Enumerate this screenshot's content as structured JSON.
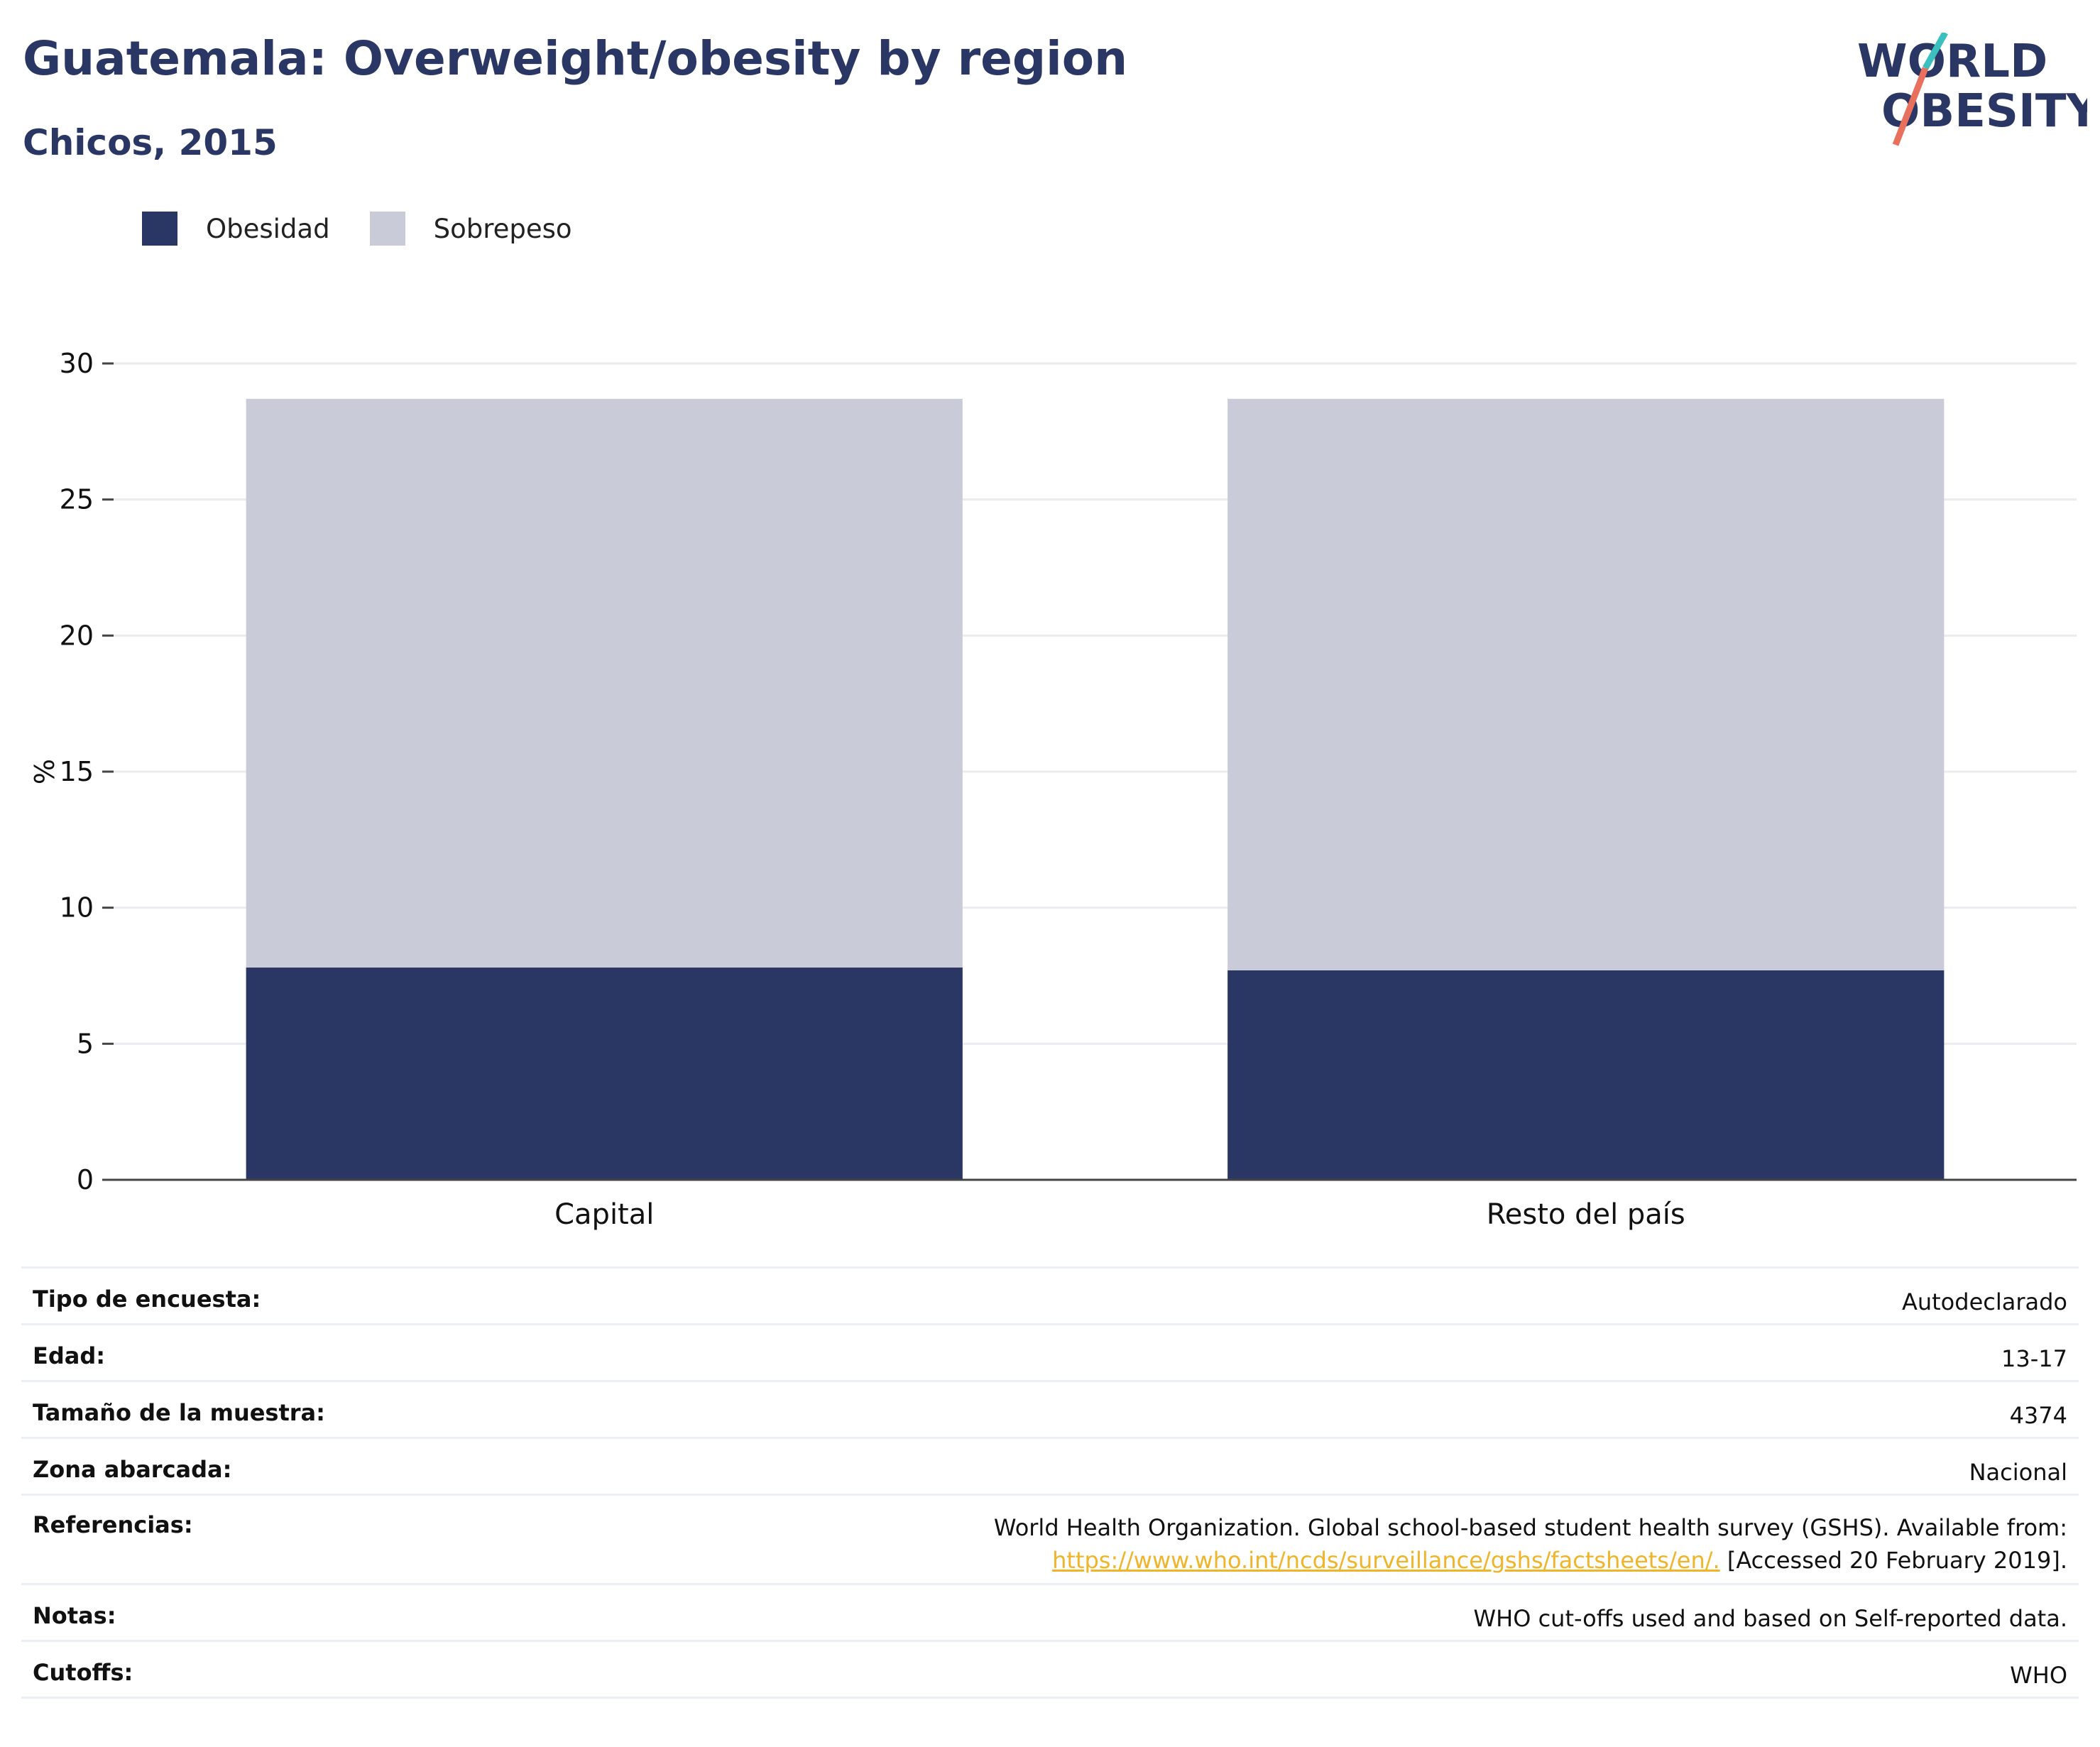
{
  "header": {
    "title": "Guatemala: Overweight/obesity by region",
    "subtitle": "Chicos, 2015",
    "logo_line1": "WORLD",
    "logo_line2": "OBESITY"
  },
  "legend": [
    {
      "label": "Obesidad",
      "color": "#2a3663"
    },
    {
      "label": "Sobrepeso",
      "color": "#c9ccd8"
    }
  ],
  "chart_data": {
    "type": "bar",
    "stacked": true,
    "categories": [
      "Capital",
      "Resto del país"
    ],
    "series": [
      {
        "name": "Obesidad",
        "values": [
          7.8,
          7.7
        ],
        "color": "#2a3663"
      },
      {
        "name": "Sobrepeso",
        "values": [
          20.9,
          21.0
        ],
        "color": "#c9ccd8"
      }
    ],
    "title": "Guatemala: Overweight/obesity by region",
    "subtitle": "Chicos, 2015",
    "xlabel": "",
    "ylabel": "%",
    "ylim": [
      0,
      30
    ],
    "yticks": [
      0,
      5,
      10,
      15,
      20,
      25,
      30
    ],
    "grid": true,
    "legend_position": "top-left"
  },
  "meta": [
    {
      "label": "Tipo de encuesta:",
      "value": "Autodeclarado"
    },
    {
      "label": "Edad:",
      "value": "13-17"
    },
    {
      "label": "Tamaño de la muestra:",
      "value": "4374"
    },
    {
      "label": "Zona abarcada:",
      "value": "Nacional"
    },
    {
      "label": "Referencias:",
      "value_line1": "World Health Organization. Global school-based student health survey (GSHS). Available from:",
      "link": "https://www.who.int/ncds/surveillance/gshs/factsheets/en/.",
      "value_after_link": " [Accessed 20 February 2019]."
    },
    {
      "label": "Notas:",
      "value": "WHO cut-offs used and based on Self-reported data."
    },
    {
      "label": "Cutoffs:",
      "value": "WHO"
    }
  ]
}
